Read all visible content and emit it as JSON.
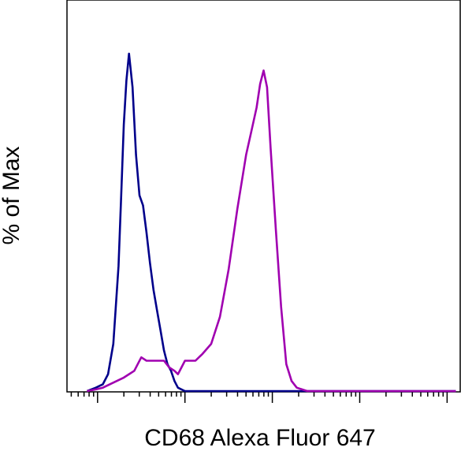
{
  "chart_data": {
    "type": "line",
    "title": "",
    "xlabel": "CD68 Alexa Fluor 647",
    "ylabel": "% of Max",
    "x_scale": "log",
    "xlim": [
      -0.35,
      4.15
    ],
    "ylim": [
      0,
      100
    ],
    "x_major_ticks": [
      0,
      1,
      2,
      3,
      4
    ],
    "tick_labels_visible": false,
    "grid": false,
    "legend": "none",
    "series": [
      {
        "color": "#00008B",
        "x": [
          -0.12,
          -0.02,
          0.06,
          0.12,
          0.18,
          0.24,
          0.27,
          0.3,
          0.33,
          0.36,
          0.4,
          0.44,
          0.48,
          0.52,
          0.56,
          0.6,
          0.64,
          0.68,
          0.72,
          0.76,
          0.8,
          0.84,
          0.88,
          0.92,
          0.96,
          1.0,
          1.04,
          1.1,
          1.16,
          1.25,
          1.35,
          1.5,
          1.7,
          2.0,
          2.5,
          3.0,
          3.5,
          4.1
        ],
        "values": [
          0,
          1,
          2,
          5,
          14,
          37,
          58,
          79,
          92,
          100,
          90,
          70,
          58,
          55,
          47,
          38,
          30,
          24,
          18,
          12,
          8,
          6,
          3,
          1,
          0.5,
          0,
          0,
          0,
          0,
          0,
          0,
          0,
          0,
          0,
          0,
          0,
          0,
          0
        ]
      },
      {
        "color": "#A000B0",
        "x": [
          -0.12,
          -0.02,
          0.06,
          0.14,
          0.22,
          0.3,
          0.36,
          0.42,
          0.46,
          0.5,
          0.56,
          0.64,
          0.7,
          0.76,
          0.82,
          0.88,
          0.92,
          0.96,
          1.0,
          1.06,
          1.12,
          1.2,
          1.3,
          1.4,
          1.5,
          1.6,
          1.7,
          1.76,
          1.82,
          1.86,
          1.9,
          1.94,
          1.98,
          2.04,
          2.1,
          2.16,
          2.22,
          2.28,
          2.34,
          2.4,
          2.46,
          2.6,
          3.0,
          3.5,
          4.1
        ],
        "values": [
          0,
          0.5,
          1,
          2,
          3,
          4,
          5,
          6,
          8,
          10,
          9,
          9,
          9,
          9,
          7,
          6,
          5,
          7,
          9,
          9,
          9,
          11,
          14,
          22,
          36,
          54,
          70,
          77,
          84,
          91,
          95,
          90,
          72,
          48,
          25,
          8,
          3,
          1,
          0.5,
          0,
          0,
          0,
          0,
          0,
          0
        ]
      }
    ]
  }
}
